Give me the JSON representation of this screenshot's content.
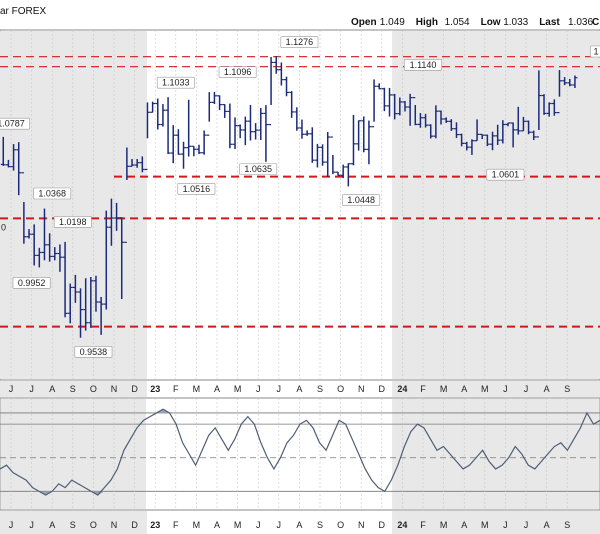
{
  "header": {
    "title_fragment": "ar FOREX",
    "ohlc": [
      {
        "label": "Open",
        "value": "1.049"
      },
      {
        "label": "High",
        "value": "1.054"
      },
      {
        "label": "Low",
        "value": "1.033"
      },
      {
        "label": "Last",
        "value": "1.036"
      }
    ],
    "trailing_fragment": "C"
  },
  "chart_data": {
    "type": "bar",
    "subtype": "ohlc-price-bars",
    "x_axis_labels": [
      "J",
      "J",
      "A",
      "S",
      "O",
      "N",
      "D",
      "23",
      "F",
      "M",
      "A",
      "M",
      "J",
      "J",
      "A",
      "S",
      "O",
      "N",
      "D",
      "24",
      "F",
      "M",
      "A",
      "M",
      "J",
      "J",
      "A",
      "S"
    ],
    "year_labels": [
      "23",
      "24"
    ],
    "price_series": [
      {
        "month": "Jun '22",
        "low": 1.04,
        "high": 1.0787
      },
      {
        "month": "Jul '22",
        "low": 0.9952,
        "high": 1.0368
      },
      {
        "month": "Aug '22",
        "low": 0.99,
        "high": 1.0368
      },
      {
        "month": "Sep '22",
        "low": 0.9536,
        "high": 1.0198
      },
      {
        "month": "Oct '22",
        "low": 0.9538,
        "high": 1.0
      },
      {
        "month": "Nov '22",
        "low": 0.97,
        "high": 1.05
      },
      {
        "month": "Dec '22",
        "low": 1.05,
        "high": 1.075
      },
      {
        "month": "Jan '23",
        "low": 1.075,
        "high": 1.1033
      },
      {
        "month": "Feb '23",
        "low": 1.0516,
        "high": 1.1
      },
      {
        "month": "Mar '23",
        "low": 1.055,
        "high": 1.1
      },
      {
        "month": "Apr '23",
        "low": 1.085,
        "high": 1.1096
      },
      {
        "month": "May '23",
        "low": 1.0635,
        "high": 1.1
      },
      {
        "month": "Jun '23",
        "low": 1.06,
        "high": 1.1
      },
      {
        "month": "Jul '23",
        "low": 1.095,
        "high": 1.1276
      },
      {
        "month": "Aug '23",
        "low": 1.07,
        "high": 1.105
      },
      {
        "month": "Sep '23",
        "low": 1.05,
        "high": 1.085
      },
      {
        "month": "Oct '23",
        "low": 1.0448,
        "high": 1.065
      },
      {
        "month": "Nov '23",
        "low": 1.05,
        "high": 1.1
      },
      {
        "month": "Dec '23",
        "low": 1.085,
        "high": 1.114
      },
      {
        "month": "Jan '24",
        "low": 1.08,
        "high": 1.105
      },
      {
        "month": "Feb '24",
        "low": 1.07,
        "high": 1.095
      },
      {
        "month": "Mar '24",
        "low": 1.075,
        "high": 1.1
      },
      {
        "month": "Apr '24",
        "low": 1.0601,
        "high": 1.085
      },
      {
        "month": "May '24",
        "low": 1.065,
        "high": 1.09
      },
      {
        "month": "Jun '24",
        "low": 1.067,
        "high": 1.09
      },
      {
        "month": "Jul '24",
        "low": 1.07,
        "high": 1.095
      },
      {
        "month": "Aug '24",
        "low": 1.08,
        "high": 1.12
      },
      {
        "month": "Sep '24",
        "low": 1.1,
        "high": 1.12
      }
    ],
    "price_labels": [
      "1.0787",
      "1.0368",
      "1.0198",
      "0.9952",
      "0.9538",
      "1.1033",
      "1.0516",
      "1.1096",
      "1.0635",
      "1.1276",
      "1.0448",
      "1.1140",
      "1.0601",
      "1"
    ],
    "left_edge_label": "0",
    "horizontal_lines": [
      {
        "value": 1.124,
        "style": "dashed",
        "color": "#cc1a1a"
      },
      {
        "value": 1.118,
        "style": "dashed",
        "color": "#cc1a1a"
      },
      {
        "value": 1.052,
        "style": "dashed",
        "color": "#cc1a1a"
      },
      {
        "value": 1.027,
        "style": "dashed",
        "color": "#cc1a1a"
      },
      {
        "value": 0.962,
        "style": "dashed",
        "color": "#cc1a1a"
      }
    ],
    "indicator": {
      "type": "line",
      "values": [
        -0.3,
        -0.2,
        -0.4,
        -0.5,
        -0.6,
        -0.8,
        -0.9,
        -1.0,
        -0.9,
        -0.7,
        -0.8,
        -0.6,
        -0.7,
        -0.8,
        -0.9,
        -1.0,
        -0.8,
        -0.6,
        -0.3,
        0.2,
        0.5,
        0.8,
        1.0,
        1.1,
        1.2,
        1.3,
        1.2,
        0.9,
        0.4,
        0.1,
        -0.2,
        0.2,
        0.6,
        0.8,
        0.5,
        0.2,
        0.5,
        0.9,
        1.1,
        0.9,
        0.4,
        0.0,
        -0.3,
        0.0,
        0.4,
        0.6,
        0.9,
        1.0,
        0.8,
        0.4,
        0.2,
        0.6,
        1.0,
        0.9,
        0.5,
        0.1,
        -0.3,
        -0.6,
        -0.8,
        -0.9,
        -0.6,
        -0.2,
        0.3,
        0.7,
        0.9,
        0.8,
        0.5,
        0.2,
        0.3,
        0.1,
        -0.1,
        -0.3,
        -0.2,
        0.0,
        0.2,
        -0.1,
        -0.3,
        -0.2,
        0.0,
        0.3,
        0.1,
        -0.2,
        -0.3,
        -0.1,
        0.1,
        0.3,
        0.4,
        0.2,
        0.5,
        0.8,
        1.2,
        0.9,
        1.0
      ],
      "levels": [
        1.2,
        0.9,
        0.0,
        -0.9
      ],
      "fill_color": "#9aa7b8",
      "line_color": "#4d5e76"
    },
    "colors": {
      "bars": "#1c2a7a",
      "shade": "#e8e8e8",
      "grid": "#c8c8c8"
    }
  }
}
